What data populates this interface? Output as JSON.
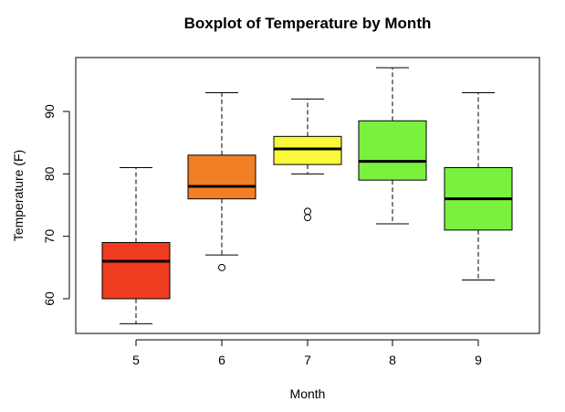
{
  "chart_data": {
    "type": "boxplot",
    "title": "Boxplot of Temperature by Month",
    "xlabel": "Month",
    "ylabel": "Temperature (F)",
    "ylim": [
      54.5,
      98.5
    ],
    "yticks": [
      60,
      70,
      80,
      90
    ],
    "grid": false,
    "categories": [
      "5",
      "6",
      "7",
      "8",
      "9"
    ],
    "boxes": [
      {
        "category": "5",
        "min": 56,
        "q1": 60,
        "median": 66,
        "q3": 69,
        "max": 81,
        "outliers": [],
        "color": "#EF3B1E"
      },
      {
        "category": "6",
        "min": 67,
        "q1": 76,
        "median": 78,
        "q3": 83,
        "max": 93,
        "outliers": [
          65
        ],
        "color": "#F27F25"
      },
      {
        "category": "7",
        "min": 80,
        "q1": 81.5,
        "median": 84,
        "q3": 86,
        "max": 92,
        "outliers": [
          73,
          74
        ],
        "color": "#FAF83D"
      },
      {
        "category": "8",
        "min": 72,
        "q1": 79,
        "median": 82,
        "q3": 88.5,
        "max": 97,
        "outliers": [],
        "color": "#7BF13F"
      },
      {
        "category": "9",
        "min": 63,
        "q1": 71,
        "median": 76,
        "q3": 81,
        "max": 93,
        "outliers": [],
        "color": "#7BF13F"
      }
    ]
  }
}
